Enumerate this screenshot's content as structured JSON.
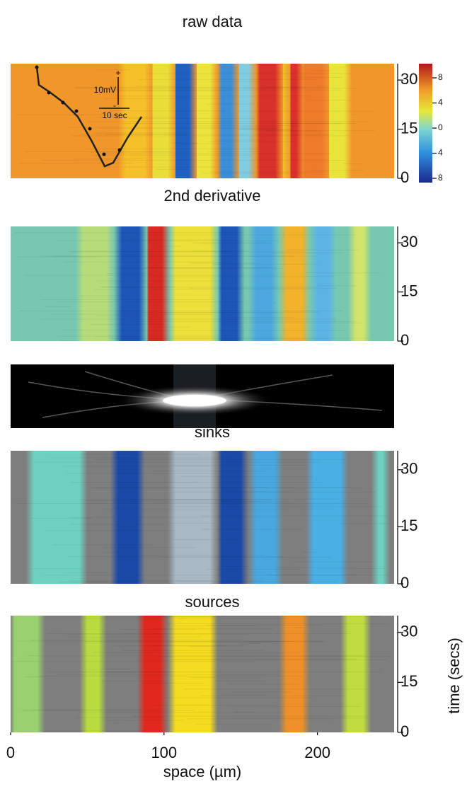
{
  "chart_data": [
    {
      "type": "heatmap",
      "title": "raw data",
      "ylim": [
        0,
        35
      ],
      "yticks": [
        0,
        15,
        30
      ],
      "colorbar": {
        "lim": [
          -8,
          8
        ],
        "ticks": [
          {
            "value": -8,
            "label": "8"
          },
          {
            "value": -4,
            "label": "4"
          },
          0,
          4,
          8
        ]
      },
      "inset": {
        "y_scale": "10mV",
        "x_scale": "10 sec",
        "plus": "+",
        "minus": "-"
      }
    },
    {
      "type": "heatmap",
      "title": "2nd derivative",
      "ylim": [
        0,
        35
      ],
      "yticks": [
        0,
        15,
        30
      ]
    },
    {
      "type": "heatmap",
      "title": "sinks",
      "ylim": [
        0,
        35
      ],
      "yticks": [
        0,
        15,
        30
      ]
    },
    {
      "type": "heatmap",
      "title": "sources",
      "ylim": [
        0,
        35
      ],
      "yticks": [
        0,
        15,
        30
      ],
      "xlim": [
        0,
        250
      ],
      "xticks": [
        0,
        100,
        200
      ],
      "xlabel": "space (µm)",
      "ylabel": "time (secs)"
    }
  ]
}
